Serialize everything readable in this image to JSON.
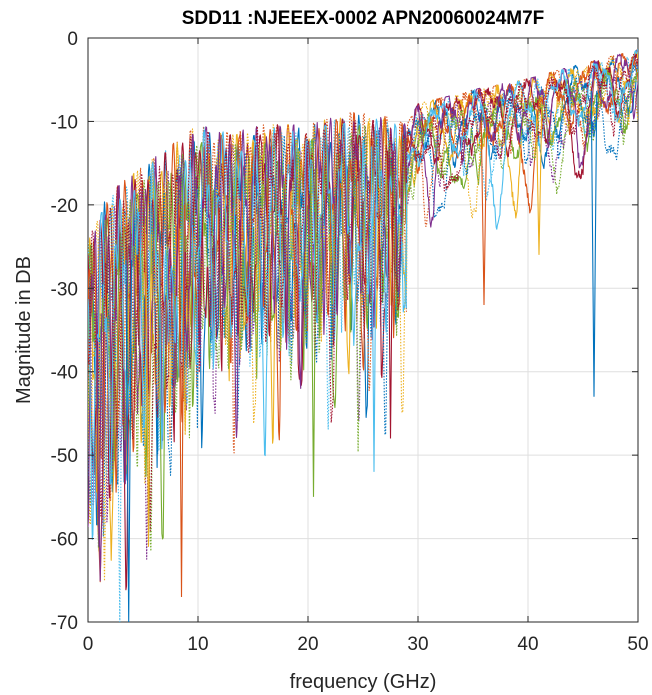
{
  "chart_data": {
    "type": "line",
    "title": "SDD11 :NJEEEX-0002 APN20060024M7F",
    "xlabel": "frequency (GHz)",
    "ylabel": "Magnitude in DB",
    "xlim": [
      0,
      50
    ],
    "ylim": [
      -70,
      0
    ],
    "x_ticks": [
      0,
      10,
      20,
      30,
      40,
      50
    ],
    "y_ticks": [
      0,
      -10,
      -20,
      -30,
      -40,
      -50,
      -60,
      -70
    ],
    "grid": true,
    "legend": "none",
    "series_colors": [
      "#0072bd",
      "#d95319",
      "#edb120",
      "#7e2f8e",
      "#77ac30",
      "#4dbeee",
      "#a2142f"
    ],
    "line_styles": [
      "solid",
      "dotted"
    ],
    "series_count": 14,
    "envelope": {
      "x": [
        0,
        2,
        5,
        8,
        10,
        13,
        16,
        20,
        24,
        27,
        29,
        30,
        33,
        36,
        40,
        44,
        47,
        50
      ],
      "upper": [
        -24,
        -19,
        -16,
        -13,
        -11,
        -12,
        -11,
        -11,
        -9.5,
        -10,
        -11,
        -8.5,
        -7.5,
        -6.5,
        -5.5,
        -4,
        -3,
        -2
      ],
      "median": [
        -36,
        -30,
        -24,
        -21,
        -17,
        -18,
        -16,
        -16,
        -13,
        -13,
        -15,
        -11,
        -11,
        -10,
        -9,
        -7,
        -6,
        -5
      ]
    },
    "notable_minima": [
      {
        "x": 3.7,
        "y": -70
      },
      {
        "x": 8.5,
        "y": -67
      },
      {
        "x": 5.5,
        "y": -61
      },
      {
        "x": 1.0,
        "y": -61
      },
      {
        "x": 20.5,
        "y": -55
      },
      {
        "x": 26.0,
        "y": -52
      },
      {
        "x": 27.5,
        "y": -48
      },
      {
        "x": 46.0,
        "y": -43
      },
      {
        "x": 36.0,
        "y": -32
      },
      {
        "x": 41.0,
        "y": -26
      }
    ]
  }
}
